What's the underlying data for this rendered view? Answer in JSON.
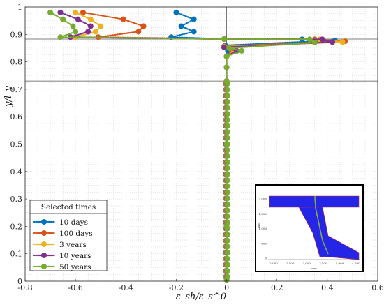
{
  "chart_data": {
    "type": "line",
    "title": "",
    "xlabel": "ε_sh/ε_s^0",
    "ylabel": "y/l_y",
    "xlim": [
      -0.8,
      0.6
    ],
    "ylim": [
      0,
      1
    ],
    "x_ticks": [
      "-0.8",
      "-0.6",
      "-0.4",
      "-0.2",
      "0",
      "0.2",
      "0.4",
      "0.6"
    ],
    "y_ticks": [
      "0",
      "0.1",
      "0.2",
      "0.3",
      "0.4",
      "0.5",
      "0.6",
      "0.7",
      "0.8",
      "0.9",
      "1"
    ],
    "grid": true,
    "reference_lines": {
      "vertical_x": 0,
      "horizontal_y": [
        0.883,
        0.73
      ]
    },
    "legend": {
      "title": "Selected times",
      "placement": "bottom-left"
    },
    "series": [
      {
        "name": "10 days",
        "color": "#0072BD",
        "points": [
          [
            -0.2,
            0.98
          ],
          [
            -0.13,
            0.955
          ],
          [
            -0.18,
            0.93
          ],
          [
            -0.13,
            0.91
          ],
          [
            -0.22,
            0.89
          ],
          [
            -0.01,
            0.883
          ],
          [
            0.3,
            0.882
          ],
          [
            0.43,
            0.878
          ],
          [
            -0.005,
            0.86
          ],
          [
            0.005,
            0.84
          ],
          [
            0.0,
            0.82
          ],
          [
            0.0,
            0.78
          ],
          [
            0.0,
            0.73
          ],
          [
            0.0,
            0.5
          ],
          [
            0.0,
            0.2
          ],
          [
            0.0,
            0.005
          ]
        ]
      },
      {
        "name": "100 days",
        "color": "#D95319",
        "points": [
          [
            -0.57,
            0.98
          ],
          [
            -0.41,
            0.955
          ],
          [
            -0.33,
            0.93
          ],
          [
            -0.35,
            0.91
          ],
          [
            -0.51,
            0.89
          ],
          [
            -0.01,
            0.883
          ],
          [
            0.35,
            0.882
          ],
          [
            0.47,
            0.875
          ],
          [
            -0.01,
            0.857
          ],
          [
            0.02,
            0.84
          ],
          [
            0.0,
            0.82
          ],
          [
            0.0,
            0.78
          ],
          [
            0.0,
            0.73
          ],
          [
            0.0,
            0.5
          ],
          [
            0.0,
            0.2
          ],
          [
            0.0,
            0.005
          ]
        ]
      },
      {
        "name": "3 years",
        "color": "#EDB120",
        "points": [
          [
            -0.6,
            0.98
          ],
          [
            -0.54,
            0.955
          ],
          [
            -0.5,
            0.93
          ],
          [
            -0.52,
            0.91
          ],
          [
            -0.6,
            0.89
          ],
          [
            -0.01,
            0.883
          ],
          [
            0.37,
            0.882
          ],
          [
            0.46,
            0.872
          ],
          [
            -0.01,
            0.855
          ],
          [
            0.03,
            0.84
          ],
          [
            0.0,
            0.82
          ],
          [
            0.0,
            0.78
          ],
          [
            0.0,
            0.73
          ],
          [
            0.0,
            0.5
          ],
          [
            0.0,
            0.2
          ],
          [
            0.0,
            0.005
          ]
        ]
      },
      {
        "name": "10 years",
        "color": "#7E2F8E",
        "points": [
          [
            -0.66,
            0.98
          ],
          [
            -0.59,
            0.955
          ],
          [
            -0.54,
            0.93
          ],
          [
            -0.55,
            0.91
          ],
          [
            -0.62,
            0.89
          ],
          [
            -0.01,
            0.883
          ],
          [
            0.38,
            0.882
          ],
          [
            0.42,
            0.872
          ],
          [
            -0.01,
            0.853
          ],
          [
            0.04,
            0.84
          ],
          [
            0.0,
            0.82
          ],
          [
            0.0,
            0.78
          ],
          [
            0.0,
            0.73
          ],
          [
            0.0,
            0.5
          ],
          [
            0.0,
            0.2
          ],
          [
            0.0,
            0.005
          ]
        ]
      },
      {
        "name": "50 years",
        "color": "#77AC30",
        "points": [
          [
            -0.7,
            0.98
          ],
          [
            -0.65,
            0.955
          ],
          [
            -0.61,
            0.93
          ],
          [
            -0.6,
            0.91
          ],
          [
            -0.66,
            0.89
          ],
          [
            -0.01,
            0.883
          ],
          [
            0.33,
            0.882
          ],
          [
            0.35,
            0.87
          ],
          [
            0.01,
            0.85
          ],
          [
            0.06,
            0.84
          ],
          [
            0.0,
            0.82
          ],
          [
            0.0,
            0.78
          ],
          [
            0.0,
            0.73
          ],
          [
            0.0,
            0.5
          ],
          [
            0.0,
            0.2
          ],
          [
            0.0,
            0.005
          ]
        ]
      }
    ],
    "inset": {
      "ylabel": "mm",
      "xlabel": "mm",
      "x_ticks": [
        "2,000",
        "2,500",
        "3,000",
        "3,500",
        "4,000",
        "4,500"
      ],
      "y_ticks": [
        "0",
        "500",
        "1,000",
        "1,500",
        "2,000"
      ]
    }
  }
}
